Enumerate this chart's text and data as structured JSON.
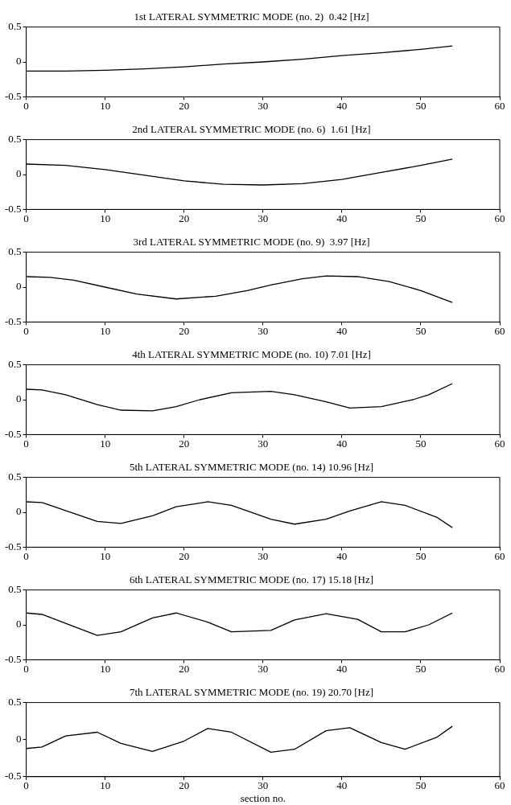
{
  "chart_data": [
    {
      "type": "line",
      "title": "1st LATERAL SYMMETRIC MODE (no. 2)  0.42 [Hz]",
      "xlim": [
        0,
        60
      ],
      "xticks": [
        0,
        10,
        20,
        30,
        40,
        50,
        60
      ],
      "ylim": [
        -0.5,
        0.5
      ],
      "yticks": [
        -0.5,
        0,
        0.5
      ],
      "series": [
        {
          "color": "#000000",
          "x": [
            0,
            5,
            10,
            15,
            20,
            25,
            30,
            35,
            40,
            45,
            50,
            54
          ],
          "values": [
            -0.13,
            -0.13,
            -0.12,
            -0.1,
            -0.07,
            -0.03,
            0,
            0.04,
            0.09,
            0.13,
            0.18,
            0.23
          ]
        }
      ]
    },
    {
      "type": "line",
      "title": "2nd LATERAL SYMMETRIC MODE (no. 6)  1.61 [Hz]",
      "xlim": [
        0,
        60
      ],
      "xticks": [
        0,
        10,
        20,
        30,
        40,
        50,
        60
      ],
      "ylim": [
        -0.5,
        0.5
      ],
      "yticks": [
        -0.5,
        0,
        0.5
      ],
      "series": [
        {
          "color": "#000000",
          "x": [
            0,
            5,
            10,
            15,
            20,
            25,
            30,
            35,
            40,
            45,
            50,
            54
          ],
          "values": [
            0.15,
            0.13,
            0.07,
            -0.01,
            -0.09,
            -0.14,
            -0.15,
            -0.13,
            -0.07,
            0.03,
            0.13,
            0.22
          ]
        }
      ]
    },
    {
      "type": "line",
      "title": "3rd LATERAL SYMMETRIC MODE (no. 9)  3.97 [Hz]",
      "xlim": [
        0,
        60
      ],
      "xticks": [
        0,
        10,
        20,
        30,
        40,
        50,
        60
      ],
      "ylim": [
        -0.5,
        0.5
      ],
      "yticks": [
        -0.5,
        0,
        0.5
      ],
      "series": [
        {
          "color": "#000000",
          "x": [
            0,
            3,
            6,
            10,
            14,
            19,
            24,
            28,
            31,
            35,
            38,
            42,
            46,
            50,
            54
          ],
          "values": [
            0.15,
            0.14,
            0.1,
            0,
            -0.1,
            -0.17,
            -0.13,
            -0.05,
            0.03,
            0.12,
            0.16,
            0.15,
            0.08,
            -0.05,
            -0.22
          ]
        }
      ]
    },
    {
      "type": "line",
      "title": "4th LATERAL SYMMETRIC MODE (no. 10) 7.01 [Hz]",
      "xlim": [
        0,
        60
      ],
      "xticks": [
        0,
        10,
        20,
        30,
        40,
        50,
        60
      ],
      "ylim": [
        -0.5,
        0.5
      ],
      "yticks": [
        -0.5,
        0,
        0.5
      ],
      "series": [
        {
          "color": "#000000",
          "x": [
            0,
            2,
            5,
            9,
            12,
            16,
            19,
            22,
            26,
            31,
            34,
            38,
            41,
            45,
            49,
            51,
            54
          ],
          "values": [
            0.15,
            0.14,
            0.07,
            -0.07,
            -0.15,
            -0.16,
            -0.1,
            0,
            0.1,
            0.12,
            0.07,
            -0.03,
            -0.12,
            -0.1,
            0,
            0.07,
            0.23
          ]
        }
      ]
    },
    {
      "type": "line",
      "title": "5th LATERAL SYMMETRIC MODE (no. 14) 10.96 [Hz]",
      "xlim": [
        0,
        60
      ],
      "xticks": [
        0,
        10,
        20,
        30,
        40,
        50,
        60
      ],
      "ylim": [
        -0.5,
        0.5
      ],
      "yticks": [
        -0.5,
        0,
        0.5
      ],
      "series": [
        {
          "color": "#000000",
          "x": [
            0,
            2,
            9,
            12,
            16,
            19,
            23,
            26,
            31,
            34,
            38,
            41,
            45,
            48,
            52,
            54
          ],
          "values": [
            0.15,
            0.14,
            -0.13,
            -0.16,
            -0.05,
            0.08,
            0.15,
            0.1,
            -0.1,
            -0.17,
            -0.1,
            0.02,
            0.15,
            0.1,
            -0.07,
            -0.22
          ]
        }
      ]
    },
    {
      "type": "line",
      "title": "6th LATERAL SYMMETRIC MODE (no. 17) 15.18 [Hz]",
      "xlim": [
        0,
        60
      ],
      "xticks": [
        0,
        10,
        20,
        30,
        40,
        50,
        60
      ],
      "ylim": [
        -0.5,
        0.5
      ],
      "yticks": [
        -0.5,
        0,
        0.5
      ],
      "series": [
        {
          "color": "#000000",
          "x": [
            0,
            2,
            9,
            12,
            16,
            19,
            23,
            26,
            31,
            34,
            38,
            42,
            45,
            48,
            51,
            54
          ],
          "values": [
            0.17,
            0.15,
            -0.15,
            -0.1,
            0.1,
            0.17,
            0.04,
            -0.1,
            -0.08,
            0.07,
            0.16,
            0.08,
            -0.1,
            -0.1,
            0,
            0.17
          ]
        }
      ]
    },
    {
      "type": "line",
      "title": "7th LATERAL SYMMETRIC MODE (no. 19) 20.70 [Hz]",
      "xlabel": "section no.",
      "xlim": [
        0,
        60
      ],
      "xticks": [
        0,
        10,
        20,
        30,
        40,
        50,
        60
      ],
      "ylim": [
        -0.5,
        0.5
      ],
      "yticks": [
        -0.5,
        0,
        0.5
      ],
      "series": [
        {
          "color": "#000000",
          "x": [
            0,
            2,
            5,
            9,
            12,
            16,
            20,
            23,
            26,
            31,
            34,
            38,
            41,
            45,
            48,
            52,
            54
          ],
          "values": [
            -0.12,
            -0.1,
            0.05,
            0.1,
            -0.05,
            -0.16,
            -0.02,
            0.15,
            0.1,
            -0.17,
            -0.13,
            0.12,
            0.16,
            -0.04,
            -0.13,
            0.03,
            0.18
          ]
        }
      ]
    }
  ]
}
